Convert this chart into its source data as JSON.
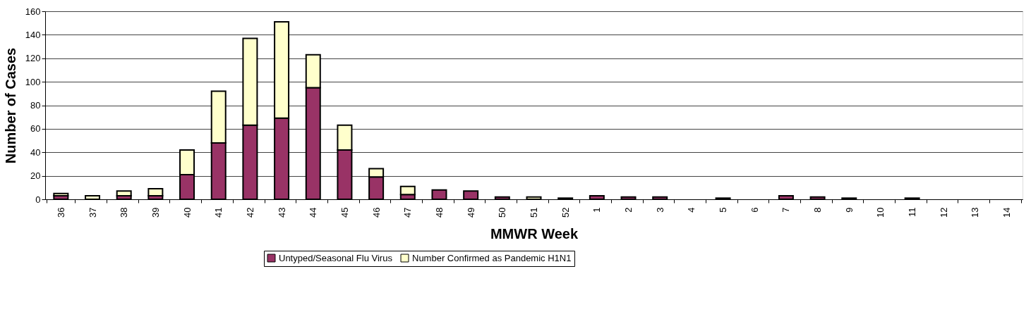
{
  "chart_data": {
    "type": "bar",
    "stacked": true,
    "xlabel": "MMWR Week",
    "ylabel": "Number of Cases",
    "categories": [
      "36",
      "37",
      "38",
      "39",
      "40",
      "41",
      "42",
      "43",
      "44",
      "45",
      "46",
      "47",
      "48",
      "49",
      "50",
      "51",
      "52",
      "1",
      "2",
      "3",
      "4",
      "5",
      "6",
      "7",
      "8",
      "9",
      "10",
      "11",
      "12",
      "13",
      "14"
    ],
    "series": [
      {
        "name": "Untyped/Seasonal Flu Virus",
        "color": "#993366",
        "values": [
          3,
          0,
          3,
          3,
          21,
          48,
          63,
          69,
          95,
          42,
          19,
          4,
          8,
          7,
          2,
          0,
          1,
          3,
          2,
          2,
          0,
          1,
          0,
          3,
          2,
          1,
          0,
          1,
          0,
          0,
          0
        ]
      },
      {
        "name": "Number Confirmed as Pandemic H1N1",
        "color": "#ffffcc",
        "values": [
          2,
          3,
          4,
          6,
          21,
          44,
          74,
          82,
          28,
          21,
          7,
          7,
          0,
          0,
          0,
          2,
          0,
          0,
          0,
          0,
          0,
          0,
          0,
          0,
          0,
          0,
          0,
          0,
          0,
          0,
          0
        ]
      }
    ],
    "ylim": [
      0,
      160
    ],
    "yticks": [
      0,
      20,
      40,
      60,
      80,
      100,
      120,
      140,
      160
    ],
    "grid": "y",
    "legend": "bottom"
  }
}
